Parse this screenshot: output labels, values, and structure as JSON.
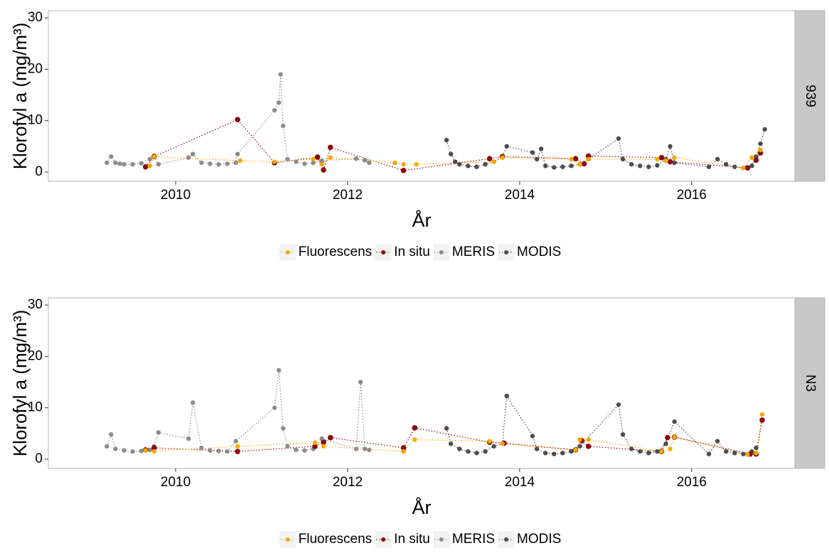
{
  "chart_data": [
    {
      "type": "line",
      "facet_label": "939",
      "x_label": "År",
      "y_label": "Klorofyl a (mg/m³)",
      "xlim": [
        2008.52,
        2017.2
      ],
      "xticks": [
        2010,
        2012,
        2014,
        2016
      ],
      "ylim": [
        -1.8,
        31.4
      ],
      "yticks": [
        0,
        10,
        20,
        30
      ],
      "grid": false,
      "legend_position": "bottom",
      "series": [
        {
          "name": "Fluorescens",
          "color": "#f5a800",
          "x": [
            2009.7,
            2009.75,
            2010.75,
            2011.15,
            2011.6,
            2011.7,
            2011.8,
            2012.55,
            2012.65,
            2012.8,
            2013.7,
            2013.8,
            2014.6,
            2014.7,
            2014.8,
            2015.6,
            2015.7,
            2015.8,
            2016.6,
            2016.7,
            2016.8
          ],
          "values": [
            1.2,
            3.0,
            2.2,
            2.0,
            2.5,
            1.5,
            2.8,
            1.8,
            1.5,
            1.5,
            2,
            2.8,
            2.5,
            1.5,
            2.5,
            2.5,
            2.2,
            2.8,
            0.8,
            2.8,
            4.3
          ]
        },
        {
          "name": "In situ",
          "color": "#8b0a0a",
          "x": [
            2009.65,
            2009.75,
            2010.72,
            2011.15,
            2011.65,
            2011.72,
            2011.8,
            2012.65,
            2013.65,
            2013.8,
            2014.65,
            2014.75,
            2014.8,
            2015.65,
            2015.75,
            2016.65,
            2016.75,
            2016.8
          ],
          "values": [
            1.0,
            3.0,
            10.2,
            1.8,
            2.9,
            0.4,
            4.8,
            0.3,
            2.6,
            3.0,
            2.6,
            1.6,
            3.1,
            2.8,
            2.0,
            0.8,
            2.3,
            3.7
          ]
        },
        {
          "name": "MERIS",
          "color": "#8c8c8c",
          "x": [
            2009.2,
            2009.25,
            2009.3,
            2009.35,
            2009.4,
            2009.5,
            2009.6,
            2009.7,
            2009.75,
            2009.8,
            2010.15,
            2010.2,
            2010.3,
            2010.4,
            2010.5,
            2010.6,
            2010.7,
            2010.72,
            2011.15,
            2011.2,
            2011.22,
            2011.25,
            2011.3,
            2011.4,
            2011.5,
            2011.6,
            2011.7,
            2012.1,
            2012.2,
            2012.25
          ],
          "values": [
            1.8,
            3.0,
            1.8,
            1.6,
            1.5,
            1.5,
            1.7,
            2.5,
            3.2,
            1.5,
            2.8,
            3.5,
            1.8,
            1.6,
            1.5,
            1.6,
            1.8,
            3.5,
            12,
            13.5,
            19,
            9,
            2.5,
            2,
            1.6,
            1.8,
            2.2,
            2.6,
            2.3,
            1.8
          ]
        },
        {
          "name": "MODIS",
          "color": "#4d4d4d",
          "x": [
            2013.15,
            2013.2,
            2013.25,
            2013.3,
            2013.4,
            2013.5,
            2013.6,
            2013.7,
            2013.8,
            2013.85,
            2014.15,
            2014.2,
            2014.25,
            2014.3,
            2014.4,
            2014.5,
            2014.6,
            2014.7,
            2014.8,
            2015.15,
            2015.2,
            2015.3,
            2015.4,
            2015.5,
            2015.6,
            2015.7,
            2015.75,
            2015.8,
            2016.2,
            2016.3,
            2016.4,
            2016.5,
            2016.6,
            2016.7,
            2016.75,
            2016.8,
            2016.85
          ],
          "values": [
            6.2,
            3.5,
            2,
            1.5,
            1.2,
            1,
            1.5,
            2,
            3,
            5,
            3.8,
            2.5,
            4.5,
            1.2,
            0.9,
            1,
            1.2,
            1.5,
            2.5,
            6.5,
            2.5,
            1.5,
            1.2,
            1,
            1.3,
            2.5,
            5,
            1.8,
            1,
            2.5,
            1.5,
            1,
            0.8,
            1.2,
            3,
            5.5,
            8.3
          ]
        }
      ]
    },
    {
      "type": "line",
      "facet_label": "N3",
      "x_label": "År",
      "y_label": "Klorofyl a (mg/m³)",
      "xlim": [
        2008.52,
        2017.2
      ],
      "xticks": [
        2010,
        2012,
        2014,
        2016
      ],
      "ylim": [
        -1.8,
        31.4
      ],
      "yticks": [
        0,
        10,
        20,
        30
      ],
      "grid": false,
      "legend_position": "bottom",
      "series": [
        {
          "name": "Fluorescens",
          "color": "#f5a800",
          "x": [
            2009.65,
            2009.75,
            2010.72,
            2011.62,
            2011.72,
            2012.65,
            2012.78,
            2013.65,
            2013.8,
            2014.65,
            2014.7,
            2014.8,
            2015.65,
            2015.75,
            2015.8,
            2016.65,
            2016.75,
            2016.82
          ],
          "values": [
            1.7,
            1.5,
            2.5,
            3.2,
            2.5,
            1.5,
            3.8,
            3.5,
            3.0,
            1.8,
            3.8,
            3.8,
            1.5,
            2,
            4.3,
            0.9,
            1.2,
            8.7
          ]
        },
        {
          "name": "In situ",
          "color": "#8b0a0a",
          "x": [
            2009.65,
            2009.75,
            2010.72,
            2011.62,
            2011.72,
            2011.8,
            2012.65,
            2012.78,
            2013.65,
            2013.82,
            2014.65,
            2014.72,
            2014.8,
            2015.65,
            2015.72,
            2015.8,
            2016.68,
            2016.75,
            2016.82
          ],
          "values": [
            1.8,
            2.2,
            1.5,
            2.5,
            3.3,
            4.2,
            2.2,
            6.1,
            3.3,
            3.1,
            1.8,
            3.6,
            2.5,
            1.5,
            4.2,
            4.3,
            1.0,
            1.0,
            7.6
          ]
        },
        {
          "name": "MERIS",
          "color": "#8c8c8c",
          "x": [
            2009.2,
            2009.25,
            2009.3,
            2009.4,
            2009.5,
            2009.6,
            2009.7,
            2009.75,
            2009.8,
            2010.15,
            2010.2,
            2010.3,
            2010.4,
            2010.5,
            2010.6,
            2010.7,
            2011.15,
            2011.2,
            2011.25,
            2011.3,
            2011.4,
            2011.5,
            2011.6,
            2011.7,
            2012.1,
            2012.15,
            2012.2,
            2012.25
          ],
          "values": [
            2.5,
            4.8,
            2,
            1.7,
            1.5,
            1.6,
            1.8,
            2.5,
            5.2,
            4,
            11,
            2.2,
            1.7,
            1.6,
            1.5,
            3.5,
            10,
            17.3,
            6,
            2.5,
            1.8,
            1.7,
            2,
            4,
            2,
            15,
            2,
            1.8
          ]
        },
        {
          "name": "MODIS",
          "color": "#4d4d4d",
          "x": [
            2013.15,
            2013.2,
            2013.3,
            2013.4,
            2013.5,
            2013.6,
            2013.7,
            2013.8,
            2013.85,
            2014.15,
            2014.2,
            2014.3,
            2014.4,
            2014.5,
            2014.6,
            2014.7,
            2015.15,
            2015.2,
            2015.3,
            2015.4,
            2015.5,
            2015.6,
            2015.7,
            2015.8,
            2016.2,
            2016.3,
            2016.4,
            2016.5,
            2016.6,
            2016.7,
            2016.75
          ],
          "values": [
            6,
            3,
            2,
            1.5,
            1.2,
            1.5,
            2.5,
            3,
            12.3,
            4.5,
            2,
            1.2,
            1,
            1.2,
            1.5,
            2.5,
            10.6,
            4.8,
            2,
            1.5,
            1.2,
            1.5,
            3,
            7.3,
            1,
            3.5,
            1.5,
            1.2,
            1,
            1.5,
            2.2
          ]
        }
      ]
    }
  ]
}
